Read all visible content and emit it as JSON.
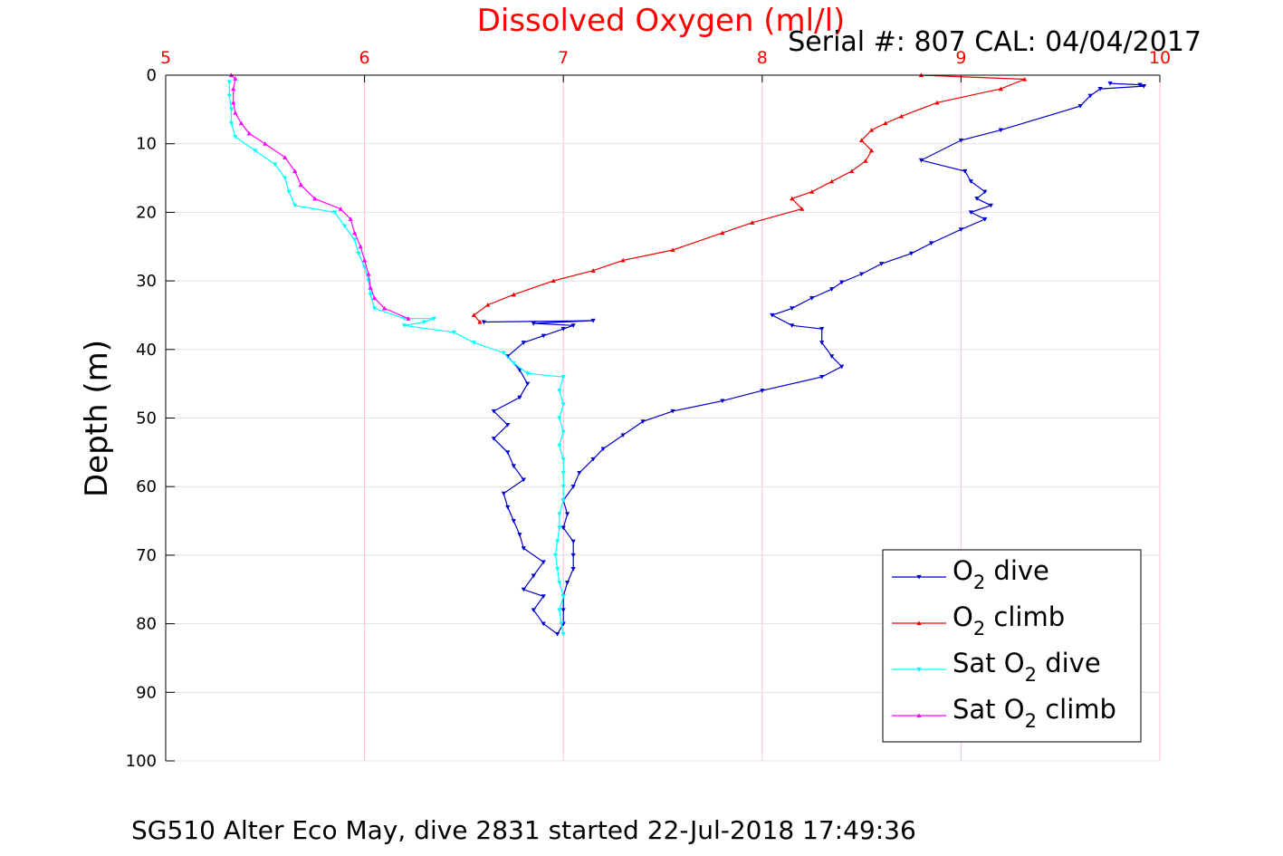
{
  "chart_data": {
    "type": "line",
    "title": "Dissolved Oxygen (ml/l)",
    "subtitle": "Serial #: 807  CAL: 04/04/2017",
    "ylabel": "Depth (m)",
    "footer": "SG510 Alter Eco May, dive 2831 started 22-Jul-2018 17:49:36",
    "xlim": [
      5,
      10
    ],
    "ylim": [
      0,
      100
    ],
    "y_reversed": true,
    "x_axis_position": "top",
    "x_ticks": [
      5,
      6,
      7,
      8,
      9,
      10
    ],
    "y_ticks": [
      0,
      10,
      20,
      30,
      40,
      50,
      60,
      70,
      80,
      90,
      100
    ],
    "grid": true,
    "legend_position": "bottom-right",
    "series": [
      {
        "name": "O2 dive",
        "legend_main": "O",
        "legend_sub": "2",
        "legend_rest": " dive",
        "color": "#0000cc",
        "marker": "triangle-down",
        "points": [
          [
            9.75,
            1.2
          ],
          [
            9.9,
            1.4
          ],
          [
            9.92,
            1.6
          ],
          [
            9.7,
            2
          ],
          [
            9.65,
            3
          ],
          [
            9.6,
            4.5
          ],
          [
            9.2,
            8
          ],
          [
            9.0,
            9.5
          ],
          [
            8.8,
            12.4
          ],
          [
            9.02,
            14
          ],
          [
            9.05,
            15.5
          ],
          [
            9.12,
            17
          ],
          [
            9.08,
            18
          ],
          [
            9.15,
            19
          ],
          [
            9.05,
            20
          ],
          [
            9.12,
            21
          ],
          [
            9.0,
            22.5
          ],
          [
            8.85,
            24.5
          ],
          [
            8.75,
            26
          ],
          [
            8.6,
            27.5
          ],
          [
            8.5,
            29
          ],
          [
            8.4,
            30.2
          ],
          [
            8.35,
            31.2
          ],
          [
            8.25,
            32.5
          ],
          [
            8.15,
            34
          ],
          [
            8.05,
            35
          ],
          [
            8.15,
            36.5
          ],
          [
            8.3,
            37
          ],
          [
            8.3,
            39
          ],
          [
            8.35,
            41
          ],
          [
            8.4,
            42.5
          ],
          [
            8.3,
            44
          ],
          [
            8.0,
            46
          ],
          [
            7.8,
            47.5
          ],
          [
            7.55,
            49
          ],
          [
            7.4,
            50.5
          ],
          [
            7.3,
            52.5
          ],
          [
            7.2,
            54.5
          ],
          [
            7.15,
            56
          ],
          [
            7.08,
            58
          ],
          [
            7.05,
            60
          ],
          [
            7.0,
            62
          ],
          [
            7.02,
            64
          ],
          [
            7.0,
            66
          ],
          [
            7.05,
            68
          ],
          [
            7.05,
            70
          ],
          [
            7.05,
            72
          ],
          [
            7.02,
            74
          ],
          [
            7.0,
            76
          ],
          [
            7.0,
            78
          ],
          [
            7.0,
            80
          ],
          [
            6.97,
            81.5
          ],
          [
            6.9,
            80
          ],
          [
            6.85,
            78
          ],
          [
            6.9,
            76
          ],
          [
            6.8,
            75
          ],
          [
            6.85,
            73
          ],
          [
            6.9,
            71
          ],
          [
            6.8,
            69
          ],
          [
            6.78,
            67
          ],
          [
            6.75,
            65
          ],
          [
            6.72,
            63
          ],
          [
            6.7,
            61
          ],
          [
            6.8,
            59
          ],
          [
            6.75,
            57
          ],
          [
            6.72,
            55
          ],
          [
            6.65,
            53
          ],
          [
            6.72,
            51
          ],
          [
            6.65,
            49
          ],
          [
            6.78,
            47
          ],
          [
            6.82,
            45
          ],
          [
            6.78,
            43
          ],
          [
            6.72,
            41
          ],
          [
            6.8,
            39
          ],
          [
            6.9,
            38
          ],
          [
            7.0,
            37
          ],
          [
            7.05,
            36.5
          ],
          [
            6.85,
            36.2
          ],
          [
            7.15,
            35.8
          ],
          [
            6.6,
            36
          ]
        ]
      },
      {
        "name": "O2 climb",
        "legend_main": "O",
        "legend_sub": "2",
        "legend_rest": " climb",
        "color": "#ee0000",
        "marker": "triangle-up",
        "points": [
          [
            6.58,
            36
          ],
          [
            6.55,
            35
          ],
          [
            6.62,
            33.5
          ],
          [
            6.75,
            32
          ],
          [
            6.95,
            30
          ],
          [
            7.15,
            28.5
          ],
          [
            7.3,
            27
          ],
          [
            7.55,
            25.5
          ],
          [
            7.8,
            23
          ],
          [
            7.95,
            21.5
          ],
          [
            8.2,
            19.5
          ],
          [
            8.15,
            18
          ],
          [
            8.25,
            17
          ],
          [
            8.35,
            15.5
          ],
          [
            8.45,
            14
          ],
          [
            8.52,
            12.5
          ],
          [
            8.55,
            11
          ],
          [
            8.5,
            9.5
          ],
          [
            8.55,
            8
          ],
          [
            8.62,
            7
          ],
          [
            8.7,
            6
          ],
          [
            8.88,
            4
          ],
          [
            9.2,
            2
          ],
          [
            9.32,
            0.6
          ],
          [
            8.8,
            0
          ]
        ]
      },
      {
        "name": "Sat O2 dive",
        "legend_main": "Sat O",
        "legend_sub": "2",
        "legend_rest": " dive",
        "color": "#00ffff",
        "marker": "triangle-down",
        "points": [
          [
            5.32,
            1
          ],
          [
            5.32,
            3
          ],
          [
            5.33,
            5
          ],
          [
            5.33,
            7
          ],
          [
            5.35,
            9
          ],
          [
            5.45,
            11
          ],
          [
            5.55,
            13
          ],
          [
            5.6,
            15
          ],
          [
            5.62,
            17
          ],
          [
            5.65,
            19
          ],
          [
            5.85,
            20
          ],
          [
            5.9,
            22
          ],
          [
            5.95,
            24
          ],
          [
            5.97,
            26
          ],
          [
            6.0,
            28
          ],
          [
            6.02,
            30
          ],
          [
            6.03,
            32
          ],
          [
            6.05,
            34
          ],
          [
            6.2,
            35.5
          ],
          [
            6.35,
            35.5
          ],
          [
            6.3,
            36
          ],
          [
            6.2,
            36.5
          ],
          [
            6.45,
            37.5
          ],
          [
            6.55,
            39
          ],
          [
            6.7,
            40.5
          ],
          [
            6.75,
            42
          ],
          [
            6.82,
            43.5
          ],
          [
            7.0,
            44
          ],
          [
            6.98,
            46
          ],
          [
            7.0,
            48
          ],
          [
            6.98,
            50
          ],
          [
            7.0,
            52
          ],
          [
            6.98,
            54
          ],
          [
            7.0,
            56
          ],
          [
            7.0,
            58
          ],
          [
            7.0,
            60
          ],
          [
            7.0,
            62
          ],
          [
            6.98,
            64
          ],
          [
            6.98,
            66
          ],
          [
            6.97,
            68
          ],
          [
            6.96,
            70
          ],
          [
            6.97,
            72
          ],
          [
            6.98,
            74
          ],
          [
            7.0,
            76
          ],
          [
            6.98,
            78
          ],
          [
            6.99,
            80
          ],
          [
            7.0,
            81.5
          ]
        ]
      },
      {
        "name": "Sat O2 climb",
        "legend_main": "Sat O",
        "legend_sub": "2",
        "legend_rest": " climb",
        "color": "#ff00ff",
        "marker": "triangle-up",
        "points": [
          [
            6.22,
            35.5
          ],
          [
            6.1,
            34
          ],
          [
            6.05,
            32.5
          ],
          [
            6.03,
            31
          ],
          [
            6.02,
            29
          ],
          [
            6.0,
            27
          ],
          [
            5.98,
            25
          ],
          [
            5.95,
            23
          ],
          [
            5.93,
            21
          ],
          [
            5.88,
            19.5
          ],
          [
            5.75,
            18
          ],
          [
            5.68,
            16
          ],
          [
            5.65,
            14
          ],
          [
            5.6,
            12
          ],
          [
            5.5,
            10
          ],
          [
            5.42,
            8.5
          ],
          [
            5.38,
            7
          ],
          [
            5.35,
            5.5
          ],
          [
            5.34,
            4
          ],
          [
            5.34,
            2
          ],
          [
            5.35,
            0.5
          ],
          [
            5.33,
            0
          ]
        ]
      }
    ]
  }
}
